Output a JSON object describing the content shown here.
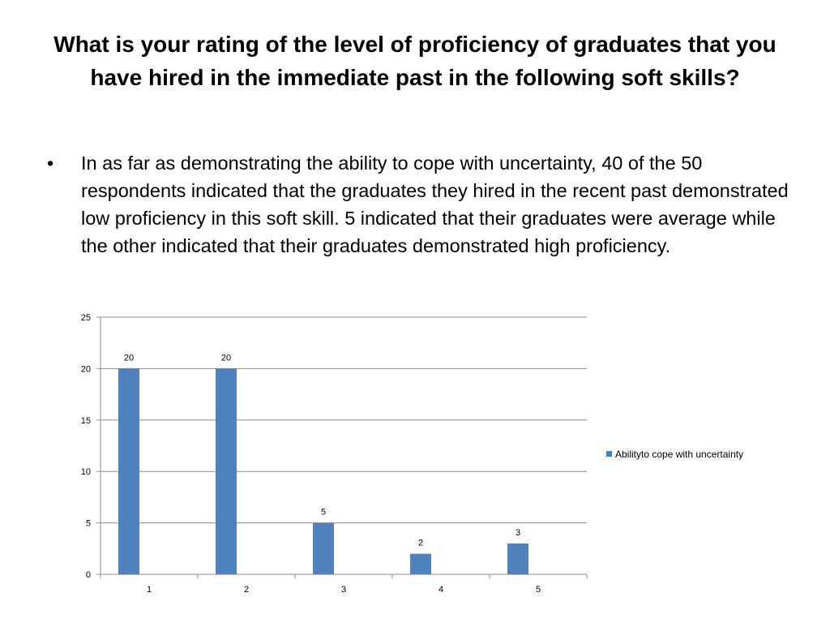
{
  "slide": {
    "title": "What is your rating of the level of proficiency of graduates that you have hired in the immediate past in the following soft skills?",
    "bullet_symbol": "•",
    "bullet_text": "In as far as demonstrating the ability to cope with uncertainty, 40 of the 50 respondents indicated that the graduates they hired in the recent past demonstrated low proficiency in this soft skill. 5 indicated that their graduates were average while the other indicated that their graduates demonstrated high proficiency."
  },
  "chart_data": {
    "type": "bar",
    "categories": [
      "1",
      "2",
      "3",
      "4",
      "5"
    ],
    "series": [
      {
        "name": "Abilityto cope with uncertainty",
        "values": [
          20,
          20,
          5,
          2,
          3
        ],
        "color": "#4F81BD"
      }
    ],
    "y_ticks": [
      0,
      5,
      10,
      15,
      20,
      25
    ],
    "ylim": [
      0,
      25
    ],
    "grid": true,
    "data_labels": true,
    "legend_position": "right",
    "xlabel": "",
    "ylabel": ""
  }
}
